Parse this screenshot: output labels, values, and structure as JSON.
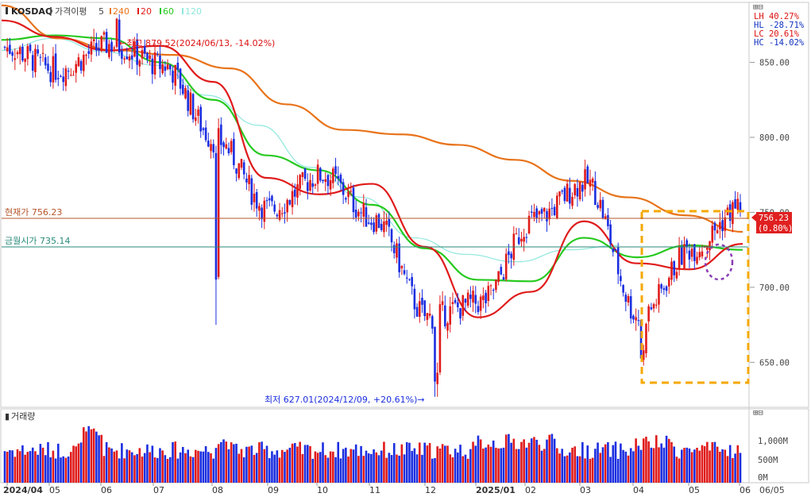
{
  "header": {
    "symbol": "KOSDAQ",
    "indicator": "가격이평",
    "period": "5",
    "ma_labels": [
      {
        "label": "240",
        "color": "#e8731a"
      },
      {
        "label": "20",
        "color": "#e01b1b"
      },
      {
        "label": "60",
        "color": "#27c91f"
      },
      {
        "label": "120",
        "color": "#8ee8dd"
      }
    ]
  },
  "stats": [
    {
      "label": "LH",
      "value": "40.27%",
      "color": "#d11"
    },
    {
      "label": "HL",
      "value": "-28.71%",
      "color": "#1030c0"
    },
    {
      "label": "LC",
      "value": "20.61%",
      "color": "#d11"
    },
    {
      "label": "HC",
      "value": "-14.02%",
      "color": "#1030c0"
    }
  ],
  "annotations": {
    "high": "←최고 879.52(2024/06/13, -14.02%)",
    "low": "최저 627.01(2024/12/09, +20.61%)→",
    "current_label": "현재가 756.23",
    "open_label": "금월시가 735.14",
    "price_box_value": "756.23",
    "price_box_change": "(0.80%)"
  },
  "volume_panel": {
    "title": "거래량",
    "ticks": [
      "1,000M",
      "500M",
      "0M"
    ]
  },
  "x_ticks": [
    "2024/04",
    "05",
    "06",
    "07",
    "08",
    "09",
    "10",
    "11",
    "12",
    "2025/01",
    "02",
    "03",
    "04",
    "05",
    "06"
  ],
  "x_end_label": "06/05",
  "colors": {
    "up": "#e01b1b",
    "down": "#1b2ee0",
    "ma240": "#e8731a",
    "ma20": "#e01b1b",
    "ma60": "#27c91f",
    "ma120": "#8ee8dd",
    "highlight": "#f5a800",
    "circle": "#8a3db5"
  },
  "chart_data": {
    "type": "line",
    "title": "KOSDAQ",
    "ylabel": "",
    "y_ticks": [
      850,
      800,
      750,
      700,
      650
    ],
    "ylim": [
      620,
      890
    ],
    "x_months": [
      "2024/04",
      "05",
      "06",
      "07",
      "08",
      "09",
      "10",
      "11",
      "12",
      "2025/01",
      "02",
      "03",
      "04",
      "05",
      "06"
    ],
    "series": [
      {
        "name": "240",
        "values": [
          888,
          866,
          858,
          855,
          846,
          822,
          805,
          802,
          795,
          785,
          771,
          760,
          748,
          737
        ]
      },
      {
        "name": "20",
        "values": [
          878,
          867,
          858,
          861,
          837,
          773,
          762,
          769,
          727,
          680,
          697,
          744,
          716,
          712,
          729
        ]
      },
      {
        "name": "60",
        "values": [
          865,
          868,
          866,
          850,
          825,
          788,
          778,
          755,
          726,
          705,
          704,
          733,
          720,
          728,
          725
        ]
      },
      {
        "name": "120",
        "values": [
          858,
          866,
          857,
          848,
          828,
          808,
          780,
          760,
          733,
          722,
          717,
          725,
          728
        ]
      },
      {
        "name": "close",
        "values": [
          860,
          845,
          862,
          848,
          798,
          752,
          775,
          745,
          680,
          690,
          745,
          770,
          680,
          726,
          756
        ]
      }
    ],
    "high": {
      "value": 879.52,
      "date": "2024/06/13"
    },
    "low": {
      "value": 627.01,
      "date": "2024/12/09"
    },
    "current": 756.23,
    "month_open": 735.14,
    "volume_ticks": [
      "1,000M",
      "500M",
      "0M"
    ]
  }
}
